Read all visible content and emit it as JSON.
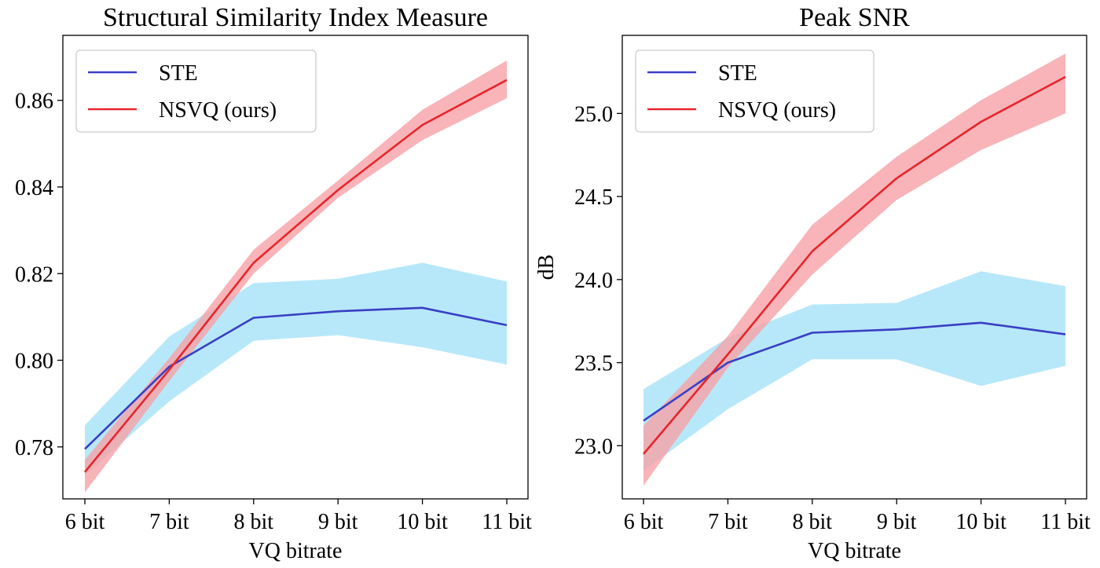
{
  "chart_data": [
    {
      "type": "line",
      "title": "Structural Similarity Index Measure",
      "xlabel": "VQ bitrate",
      "ylabel": "",
      "categories": [
        "6 bit",
        "7 bit",
        "8 bit",
        "9 bit",
        "10 bit",
        "11 bit"
      ],
      "ylim": [
        0.768,
        0.875
      ],
      "yticks": [
        0.78,
        0.8,
        0.82,
        0.84,
        0.86
      ],
      "ytick_labels": [
        "0.78",
        "0.80",
        "0.82",
        "0.84",
        "0.86"
      ],
      "grid": false,
      "legend": "top-left",
      "series": [
        {
          "name": "STE",
          "color": "#3a3fc4",
          "band_color": "#9fe0f7",
          "values": [
            0.7795,
            0.7985,
            0.8098,
            0.8113,
            0.8121,
            0.8081
          ],
          "lower": [
            0.7735,
            0.7905,
            0.8045,
            0.8058,
            0.803,
            0.799
          ],
          "upper": [
            0.785,
            0.8055,
            0.8178,
            0.8188,
            0.8225,
            0.8182
          ]
        },
        {
          "name": "NSVQ (ours)",
          "color": "#e6262b",
          "band_color": "#f6a1a6",
          "values": [
            0.7742,
            0.7978,
            0.8225,
            0.8393,
            0.8543,
            0.8647
          ],
          "lower": [
            0.7695,
            0.7952,
            0.82,
            0.8375,
            0.8508,
            0.8605
          ],
          "upper": [
            0.777,
            0.8005,
            0.8255,
            0.8415,
            0.8578,
            0.8692
          ]
        }
      ]
    },
    {
      "type": "line",
      "title": "Peak SNR",
      "xlabel": "VQ bitrate",
      "ylabel": "dB",
      "categories": [
        "6 bit",
        "7 bit",
        "8 bit",
        "9 bit",
        "10 bit",
        "11 bit"
      ],
      "ylim": [
        22.68,
        25.47
      ],
      "yticks": [
        23.0,
        23.5,
        24.0,
        24.5,
        25.0
      ],
      "ytick_labels": [
        "23.0",
        "23.5",
        "24.0",
        "24.5",
        "25.0"
      ],
      "grid": false,
      "legend": "top-left",
      "series": [
        {
          "name": "STE",
          "color": "#3a3fc4",
          "band_color": "#9fe0f7",
          "values": [
            23.15,
            23.5,
            23.68,
            23.7,
            23.74,
            23.67
          ],
          "lower": [
            22.85,
            23.22,
            23.52,
            23.52,
            23.36,
            23.48
          ],
          "upper": [
            23.34,
            23.65,
            23.85,
            23.86,
            24.05,
            23.96
          ]
        },
        {
          "name": "NSVQ (ours)",
          "color": "#e6262b",
          "band_color": "#f6a1a6",
          "values": [
            22.95,
            23.55,
            24.17,
            24.61,
            24.95,
            25.22
          ],
          "lower": [
            22.76,
            23.47,
            24.03,
            24.48,
            24.78,
            25.0
          ],
          "upper": [
            23.12,
            23.66,
            24.33,
            24.74,
            25.08,
            25.36
          ]
        }
      ]
    }
  ]
}
